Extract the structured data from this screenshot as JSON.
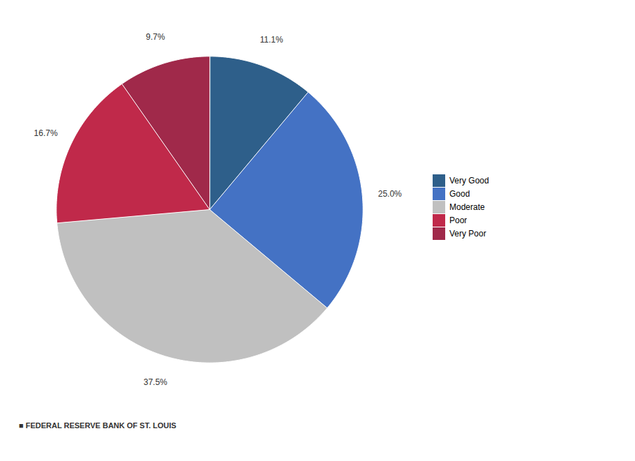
{
  "chart_data": {
    "type": "pie",
    "categories": [
      "Very Good",
      "Good",
      "Moderate",
      "Poor",
      "Very Poor"
    ],
    "values": [
      11.1,
      25.0,
      37.5,
      16.7,
      9.7
    ],
    "value_labels": [
      "11.1%",
      "25.0%",
      "37.5%",
      "16.7%",
      "9.7%"
    ],
    "colors": [
      "#2E5F8A",
      "#4472C4",
      "#C0C0C0",
      "#C0294A",
      "#A0294A"
    ],
    "data_labels": true,
    "legend": "right",
    "caption": "■  FEDERAL RESERVE BANK OF ST. LOUIS"
  }
}
